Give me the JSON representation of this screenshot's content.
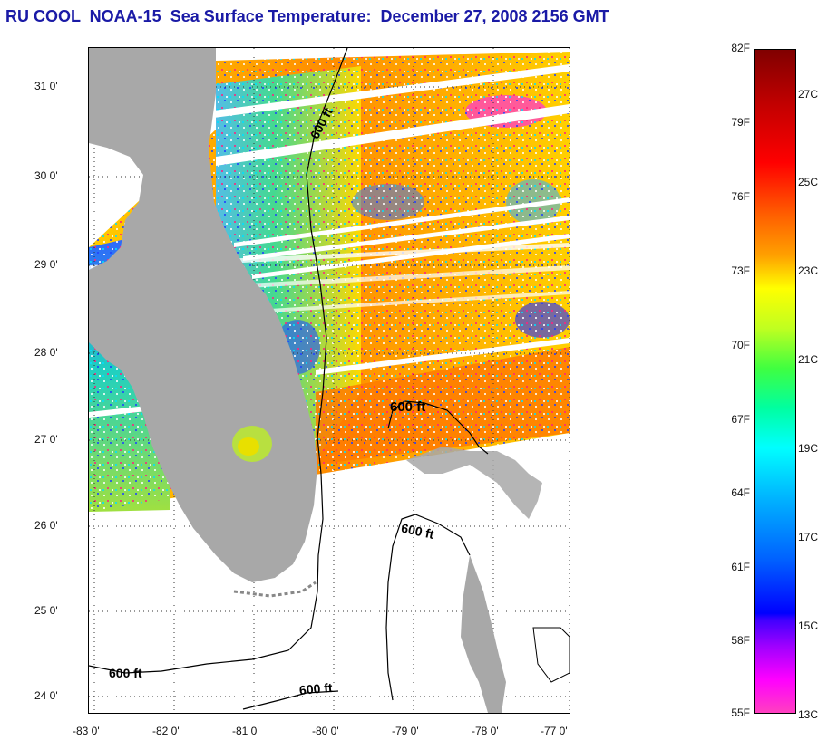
{
  "title": "RU COOL  NOAA-15  Sea Surface Temperature:  December 27, 2008 2156 GMT",
  "map": {
    "lat_labels": [
      "31 0'",
      "30 0'",
      "29 0'",
      "28 0'",
      "27 0'",
      "26 0'",
      "25 0'",
      "24 0'"
    ],
    "lon_labels": [
      "-83 0'",
      "-82 0'",
      "-81 0'",
      "-80 0'",
      "-79 0'",
      "-78 0'",
      "-77 0'"
    ],
    "isobath_labels": [
      "600 ft",
      "600 ft",
      "600 ft",
      "600 ft",
      "600 ft"
    ],
    "colors": {
      "land": "#a8a8a8",
      "no_data": "#ffffff"
    }
  },
  "colorbar": {
    "fahrenheit_labels": [
      "82F",
      "79F",
      "76F",
      "73F",
      "70F",
      "67F",
      "64F",
      "61F",
      "58F",
      "55F"
    ],
    "celsius_labels": [
      "27C",
      "25C",
      "23C",
      "21C",
      "19C",
      "17C",
      "15C",
      "13C"
    ]
  }
}
